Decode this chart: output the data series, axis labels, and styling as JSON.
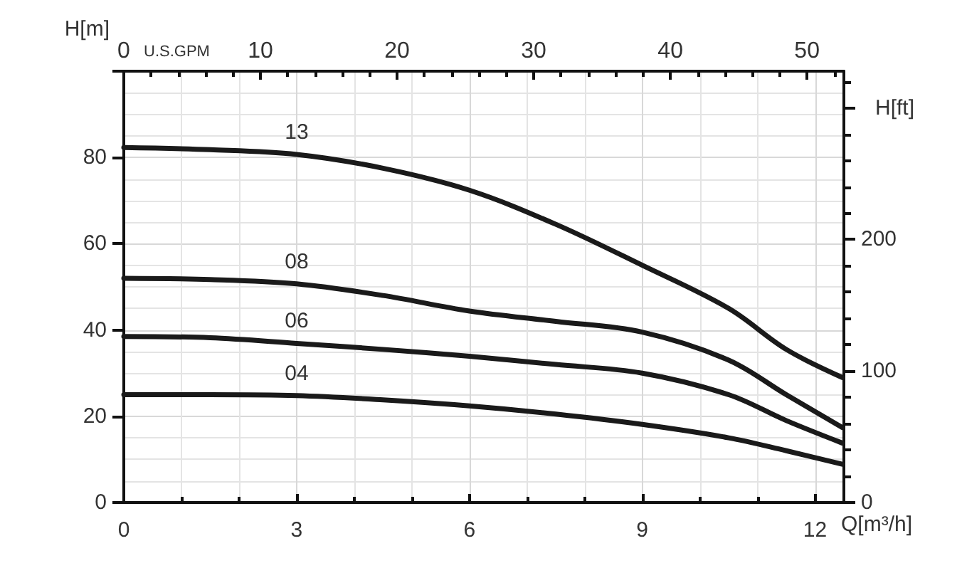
{
  "chart_data": {
    "type": "line",
    "xlabel": "Q[m³/h]",
    "ylabel": "H[m]",
    "y2label": "H[ft]",
    "x2label": "U.S.GPM",
    "xlim": [
      0,
      12.5
    ],
    "xticks": [
      0,
      3,
      6,
      9,
      12
    ],
    "x2lim": [
      0,
      52.7
    ],
    "x2ticks": [
      0,
      10,
      20,
      30,
      40,
      50
    ],
    "ylim": [
      0,
      100
    ],
    "yticks": [
      0,
      20,
      40,
      60,
      80,
      {
        "value": 100,
        "label": null
      }
    ],
    "y2lim": [
      0,
      328
    ],
    "y2ticks": [
      0,
      100,
      200,
      {
        "value": 300,
        "label": null
      }
    ],
    "grid": true,
    "legend": false,
    "marker": "none",
    "line_style": "solid",
    "x": [
      0,
      1.5,
      3,
      4.5,
      6,
      7.5,
      9,
      10.5,
      11.5,
      12.47
    ],
    "series": [
      {
        "name": "13",
        "color": "#1a1a1a",
        "values": [
          82.3,
          81.8,
          80.7,
          77.5,
          72.4,
          64.5,
          55,
          45,
          35.5,
          29
        ]
      },
      {
        "name": "08",
        "color": "#1a1a1a",
        "values": [
          52,
          51.7,
          50.7,
          48,
          44.4,
          42,
          39.5,
          33,
          25,
          17.4
        ]
      },
      {
        "name": "06",
        "color": "#1a1a1a",
        "values": [
          38.5,
          38.2,
          36.9,
          35.5,
          33.9,
          32,
          30,
          25,
          19,
          13.8
        ]
      },
      {
        "name": "04",
        "color": "#1a1a1a",
        "values": [
          25,
          25,
          24.8,
          23.8,
          22.4,
          20.5,
          18.1,
          15,
          12,
          8.9
        ]
      }
    ]
  }
}
